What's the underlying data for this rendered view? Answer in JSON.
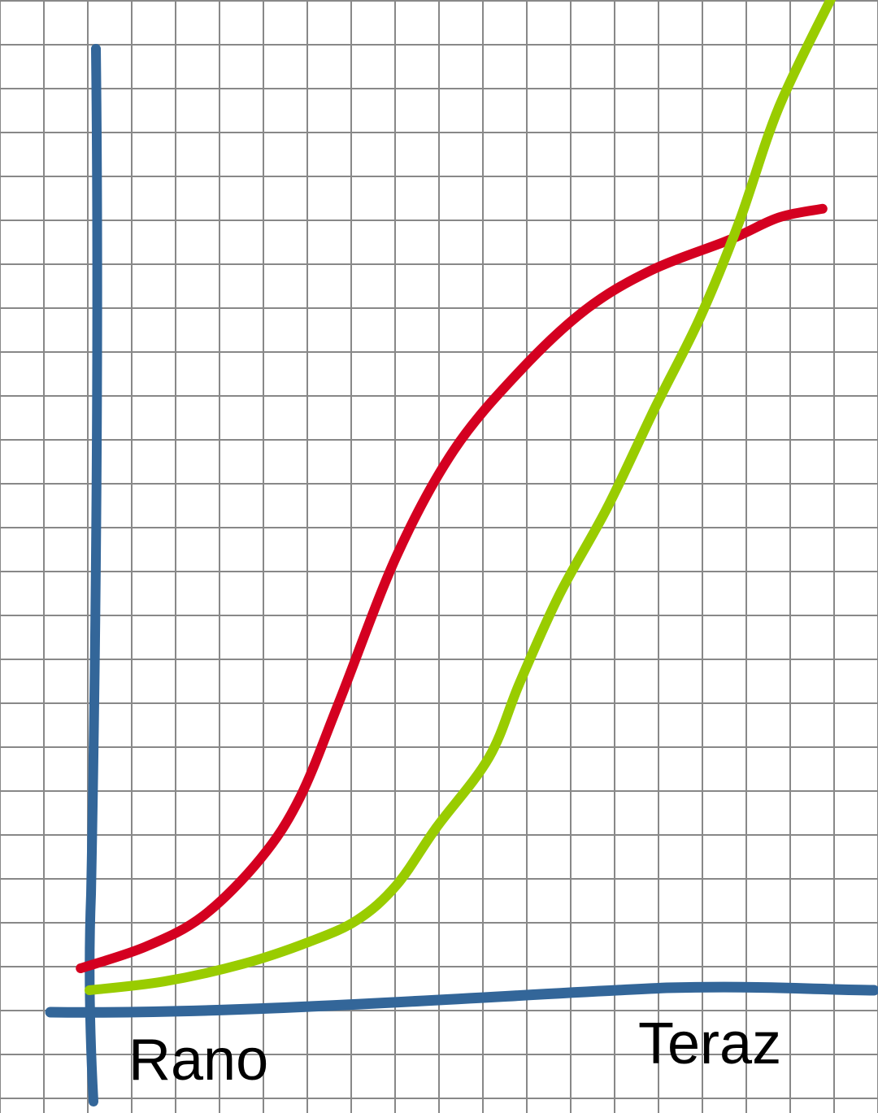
{
  "chart_data": {
    "type": "line",
    "title": "",
    "xlabel": "",
    "ylabel": "",
    "grid": true,
    "x_tick_labels": {
      "start": "Rano",
      "end": "Teraz"
    },
    "colors": {
      "axes": "#336699",
      "grid": "#888888"
    },
    "series": [
      {
        "color": "#d40020",
        "points": [
          [
            -0.2,
            1.0
          ],
          [
            1.3,
            1.5
          ],
          [
            2.6,
            2.2
          ],
          [
            3.9,
            3.5
          ],
          [
            4.8,
            4.9
          ],
          [
            5.7,
            7.1
          ],
          [
            7.0,
            10.4
          ],
          [
            8.3,
            12.8
          ],
          [
            9.8,
            14.6
          ],
          [
            11.3,
            16.0
          ],
          [
            12.8,
            16.9
          ],
          [
            14.6,
            17.6
          ],
          [
            15.7,
            18.1
          ],
          [
            16.7,
            18.3
          ]
        ]
      },
      {
        "color": "#99cc00",
        "points": [
          [
            0,
            0.5
          ],
          [
            1.7,
            0.7
          ],
          [
            3.5,
            1.1
          ],
          [
            5.0,
            1.6
          ],
          [
            6.1,
            2.1
          ],
          [
            7.0,
            2.9
          ],
          [
            7.9,
            4.2
          ],
          [
            9.1,
            5.8
          ],
          [
            9.8,
            7.5
          ],
          [
            10.7,
            9.5
          ],
          [
            11.8,
            11.5
          ],
          [
            12.9,
            13.8
          ],
          [
            13.9,
            15.8
          ],
          [
            14.8,
            18.0
          ],
          [
            15.7,
            20.6
          ],
          [
            16.9,
            23.1
          ]
        ]
      }
    ]
  }
}
